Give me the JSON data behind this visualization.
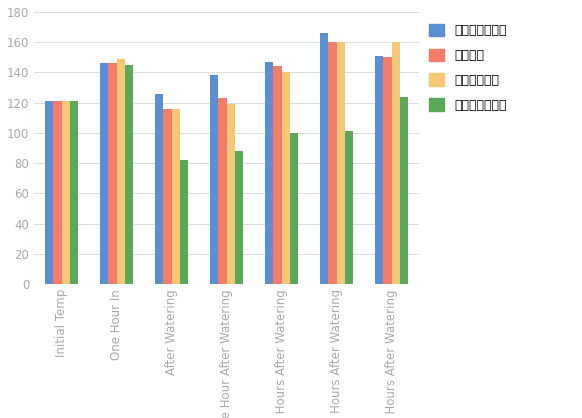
{
  "categories": [
    "Initial Temp",
    "One Hour In",
    "After Watering",
    "One Hour After Watering",
    "Three Hours After Watering",
    "Five Hours After Watering",
    "Six Hours After Watering"
  ],
  "series": {
    "未经处理的草坪": [
      121,
      146,
      126,
      138,
      147,
      166,
      151
    ],
    "沙子填充": [
      121,
      146,
      116,
      123,
      144,
      160,
      150
    ],
    "碎橡胶填充物": [
      121,
      149,
      116,
      119,
      140,
      160,
      160
    ],
    "沸石草坪填充物": [
      121,
      145,
      82,
      88,
      100,
      101,
      124
    ]
  },
  "colors": {
    "未经处理的草坪": "#5B8FD4",
    "沙子填充": "#F47C6A",
    "碎橡胶填充物": "#F5C878",
    "沸石草坪填充物": "#5BA85B"
  },
  "ylim": [
    0,
    180
  ],
  "yticks": [
    0,
    20,
    40,
    60,
    80,
    100,
    120,
    140,
    160,
    180
  ],
  "background_color": "#FFFFFF",
  "grid_color": "#DDDDDD",
  "legend_labels": [
    "未经处理的草坪",
    "沙子填充",
    "碎橡胶填充物",
    "沸石草坪填充物"
  ],
  "bar_width": 0.15,
  "tick_fontsize": 8.5,
  "legend_fontsize": 9,
  "axis_color": "#AAAAAA"
}
